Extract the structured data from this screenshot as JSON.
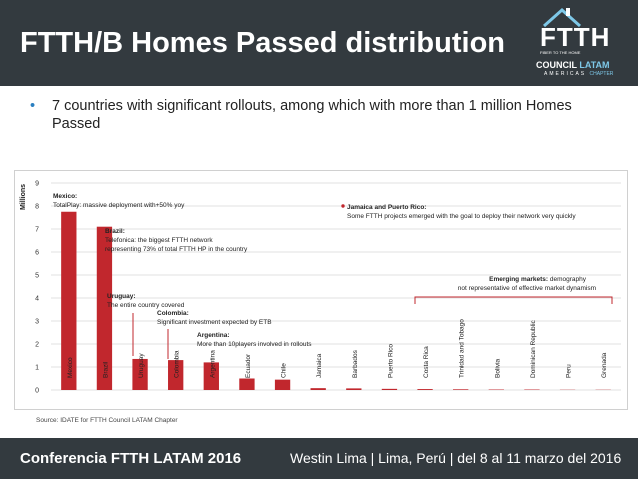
{
  "header": {
    "title": "FTTH/B Homes Passed distribution",
    "logo": {
      "brand": "FTTH",
      "tagline": "FIBER TO THE HOME",
      "council": "COUNCIL",
      "latam": "LATAM",
      "americas": "AMERICAS",
      "chapter": "CHAPTER"
    }
  },
  "bullet": {
    "text": "7 countries with significant rollouts, among which  with more than 1 million Homes Passed"
  },
  "chart_data": {
    "type": "bar",
    "ylabel": "Millions",
    "ylim": [
      0,
      9
    ],
    "yticks": [
      "0",
      "1",
      "2",
      "3",
      "4",
      "5",
      "6",
      "7",
      "8",
      "9"
    ],
    "grid": true,
    "color": "#c1272d",
    "categories": [
      "Mexico",
      "Brazil",
      "Uruguay",
      "Colombia",
      "Argentina",
      "Ecuador",
      "Chile",
      "Jamaica",
      "Barbados",
      "Puerto Rico",
      "Costa Rica",
      "Trinidad and Tobago",
      "Bolivia",
      "Dominican Republic",
      "Peru",
      "Grenada"
    ],
    "values": [
      7.75,
      7.1,
      1.35,
      1.3,
      1.2,
      0.5,
      0.45,
      0.08,
      0.07,
      0.05,
      0.04,
      0.03,
      0.02,
      0.02,
      0.01,
      0.01
    ],
    "annotations": [
      {
        "title": "Mexico:",
        "text": [
          "TotalPlay: massive deployment with+50% yoy"
        ]
      },
      {
        "title": "Brazil:",
        "text": [
          "Telefonica: the biggest FTTH network",
          "representing 73% of total FTTH HP in the country"
        ]
      },
      {
        "title": "Uruguay:",
        "text": [
          "The entire country covered"
        ]
      },
      {
        "title": "Colombia:",
        "text": [
          "Significant investment expected by ETB"
        ]
      },
      {
        "title": "Argentina:",
        "text": [
          "More than 10players involved in rollouts"
        ]
      },
      {
        "title": "Jamaica and Puerto Rico:",
        "text": [
          "Some FTTH projects emerged with the goal to deploy their network very quickly"
        ]
      },
      {
        "title": "Emerging markets:",
        "title_rest": " demography",
        "text": [
          "not representative of effective market dynamism"
        ]
      }
    ]
  },
  "source": "Source: IDATE for FTTH Council LATAM Chapter",
  "footer": {
    "conference": "Conferencia FTTH LATAM 2016",
    "venue": "Westin Lima  |  Lima, Perú  |  del 8 al 11 marzo del 2016"
  }
}
